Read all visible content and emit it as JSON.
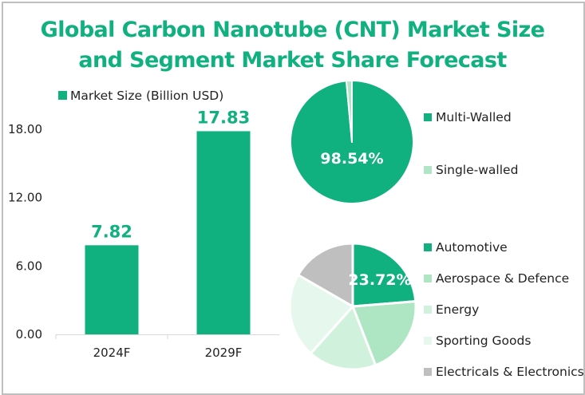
{
  "title_line1": "Global Carbon Nanotube (CNT) Market Size",
  "title_line2": "and Segment Market Share Forecast",
  "colors": {
    "accent": "#10b07f",
    "axis": "#d9d9d9"
  },
  "chart_data": [
    {
      "type": "bar",
      "title": "Global Carbon Nanotube (CNT) Market Size and Segment Market Share Forecast",
      "legend": "Market Size (Billion USD)",
      "categories": [
        "2024F",
        "2029F"
      ],
      "values": [
        7.82,
        17.83
      ],
      "value_labels": [
        "7.82",
        "17.83"
      ],
      "yticks": [
        "0.00",
        "6.00",
        "12.00",
        "18.00"
      ],
      "ytick_values": [
        0,
        6,
        12,
        18
      ],
      "ylim": [
        0,
        18
      ],
      "xlabel": "",
      "ylabel": "",
      "grid": false,
      "color": "#10b07f"
    },
    {
      "type": "pie",
      "categories": [
        "Multi-Walled",
        "Single-walled"
      ],
      "values": [
        98.54,
        1.46
      ],
      "data_label": "98.54%",
      "colors": [
        "#10b07f",
        "#b0e6c6"
      ],
      "legend_position": "right"
    },
    {
      "type": "pie",
      "categories": [
        "Automotive",
        "Aerospace & Defence",
        "Energy",
        "Sporting Goods",
        "Electricals & Electronics"
      ],
      "values": [
        23.72,
        20.4,
        17.5,
        21.7,
        16.68
      ],
      "data_label": "23.72%",
      "colors": [
        "#10b07f",
        "#aee6c4",
        "#d0f1dc",
        "#e6f7ed",
        "#bfbfbf"
      ],
      "legend_position": "right"
    }
  ]
}
